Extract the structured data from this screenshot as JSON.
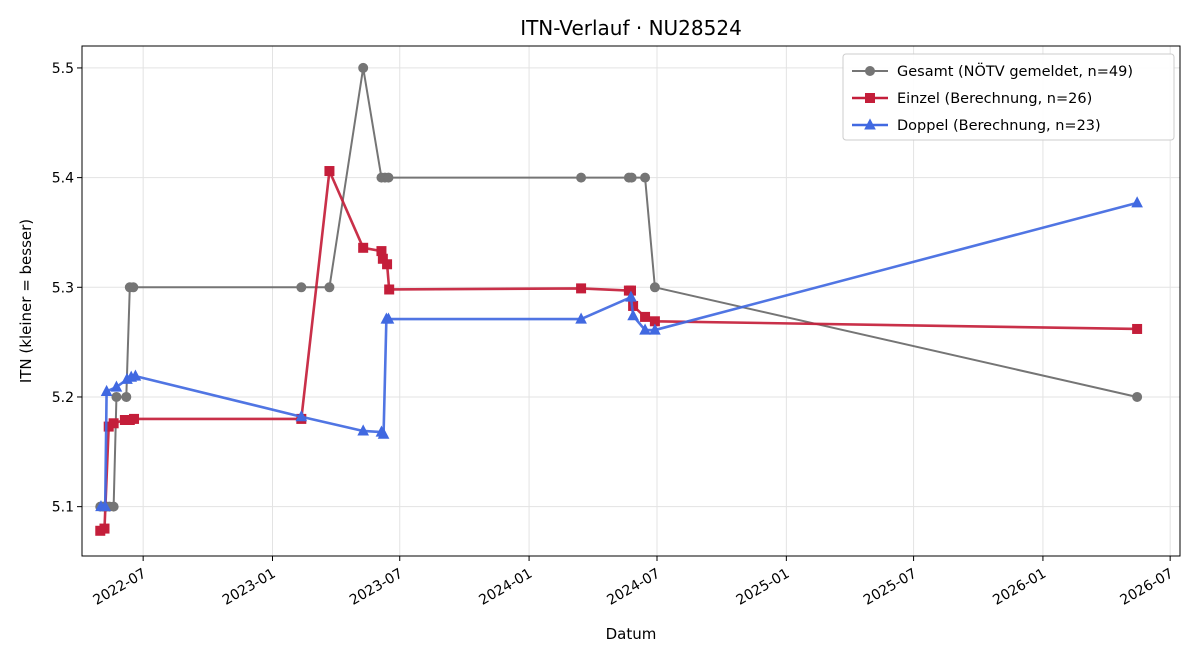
{
  "chart_data": {
    "type": "line",
    "title": "ITN-Verlauf · NU28524",
    "xlabel": "Datum",
    "ylabel": "ITN  (kleiner = besser)",
    "x_type": "date",
    "xlim": [
      "2022-04-05",
      "2026-07-15"
    ],
    "ylim": [
      5.055,
      5.52
    ],
    "x_ticks": [
      {
        "date": "2022-07-01",
        "label": "2022-07"
      },
      {
        "date": "2023-01-01",
        "label": "2023-01"
      },
      {
        "date": "2023-07-01",
        "label": "2023-07"
      },
      {
        "date": "2024-01-01",
        "label": "2024-01"
      },
      {
        "date": "2024-07-01",
        "label": "2024-07"
      },
      {
        "date": "2025-01-01",
        "label": "2025-01"
      },
      {
        "date": "2025-07-01",
        "label": "2025-07"
      },
      {
        "date": "2026-01-01",
        "label": "2026-01"
      },
      {
        "date": "2026-07-01",
        "label": "2026-07"
      }
    ],
    "y_ticks": [
      {
        "value": 5.1,
        "label": "5.1"
      },
      {
        "value": 5.2,
        "label": "5.2"
      },
      {
        "value": 5.3,
        "label": "5.3"
      },
      {
        "value": 5.4,
        "label": "5.4"
      },
      {
        "value": 5.5,
        "label": "5.5"
      }
    ],
    "grid": true,
    "legend_position": "top-right",
    "series": [
      {
        "name": "Gesamt (NÖTV gemeldet, n=49)",
        "color": "#757575",
        "marker": "circle",
        "points": [
          {
            "x": "2022-05-01",
            "y": 5.1
          },
          {
            "x": "2022-05-05",
            "y": 5.1
          },
          {
            "x": "2022-05-10",
            "y": 5.1
          },
          {
            "x": "2022-05-14",
            "y": 5.1
          },
          {
            "x": "2022-05-20",
            "y": 5.1
          },
          {
            "x": "2022-05-24",
            "y": 5.2
          },
          {
            "x": "2022-06-07",
            "y": 5.2
          },
          {
            "x": "2022-06-12",
            "y": 5.3
          },
          {
            "x": "2022-06-17",
            "y": 5.3
          },
          {
            "x": "2023-02-11",
            "y": 5.3
          },
          {
            "x": "2023-03-23",
            "y": 5.3
          },
          {
            "x": "2023-05-10",
            "y": 5.5
          },
          {
            "x": "2023-06-05",
            "y": 5.4
          },
          {
            "x": "2023-06-10",
            "y": 5.4
          },
          {
            "x": "2023-06-15",
            "y": 5.4
          },
          {
            "x": "2024-03-15",
            "y": 5.4
          },
          {
            "x": "2024-05-22",
            "y": 5.4
          },
          {
            "x": "2024-05-26",
            "y": 5.4
          },
          {
            "x": "2024-06-14",
            "y": 5.4
          },
          {
            "x": "2024-06-28",
            "y": 5.3
          },
          {
            "x": "2026-05-15",
            "y": 5.2
          }
        ]
      },
      {
        "name": "Einzel (Berechnung, n=26)",
        "color": "#c41e3a",
        "marker": "square",
        "points": [
          {
            "x": "2022-05-01",
            "y": 5.078
          },
          {
            "x": "2022-05-07",
            "y": 5.08
          },
          {
            "x": "2022-05-13",
            "y": 5.173
          },
          {
            "x": "2022-05-20",
            "y": 5.176
          },
          {
            "x": "2022-06-05",
            "y": 5.179
          },
          {
            "x": "2022-06-12",
            "y": 5.179
          },
          {
            "x": "2022-06-18",
            "y": 5.18
          },
          {
            "x": "2023-02-11",
            "y": 5.18
          },
          {
            "x": "2023-03-23",
            "y": 5.406
          },
          {
            "x": "2023-05-10",
            "y": 5.336
          },
          {
            "x": "2023-06-05",
            "y": 5.333
          },
          {
            "x": "2023-06-07",
            "y": 5.326
          },
          {
            "x": "2023-06-13",
            "y": 5.321
          },
          {
            "x": "2023-06-16",
            "y": 5.298
          },
          {
            "x": "2024-03-15",
            "y": 5.299
          },
          {
            "x": "2024-05-22",
            "y": 5.297
          },
          {
            "x": "2024-05-25",
            "y": 5.297
          },
          {
            "x": "2024-05-28",
            "y": 5.283
          },
          {
            "x": "2024-06-14",
            "y": 5.273
          },
          {
            "x": "2024-06-28",
            "y": 5.269
          },
          {
            "x": "2026-05-15",
            "y": 5.262
          }
        ]
      },
      {
        "name": "Doppel (Berechnung, n=23)",
        "color": "#4169e1",
        "marker": "triangle",
        "points": [
          {
            "x": "2022-05-02",
            "y": 5.1
          },
          {
            "x": "2022-05-08",
            "y": 5.1
          },
          {
            "x": "2022-05-10",
            "y": 5.205
          },
          {
            "x": "2022-05-24",
            "y": 5.209
          },
          {
            "x": "2022-06-08",
            "y": 5.216
          },
          {
            "x": "2022-06-14",
            "y": 5.218
          },
          {
            "x": "2022-06-20",
            "y": 5.219
          },
          {
            "x": "2023-02-11",
            "y": 5.182
          },
          {
            "x": "2023-05-10",
            "y": 5.169
          },
          {
            "x": "2023-06-05",
            "y": 5.168
          },
          {
            "x": "2023-06-08",
            "y": 5.166
          },
          {
            "x": "2023-06-12",
            "y": 5.271
          },
          {
            "x": "2023-06-15",
            "y": 5.271
          },
          {
            "x": "2024-03-15",
            "y": 5.271
          },
          {
            "x": "2024-05-25",
            "y": 5.291
          },
          {
            "x": "2024-05-28",
            "y": 5.274
          },
          {
            "x": "2024-06-14",
            "y": 5.261
          },
          {
            "x": "2024-06-28",
            "y": 5.261
          },
          {
            "x": "2026-05-15",
            "y": 5.377
          }
        ]
      }
    ]
  }
}
